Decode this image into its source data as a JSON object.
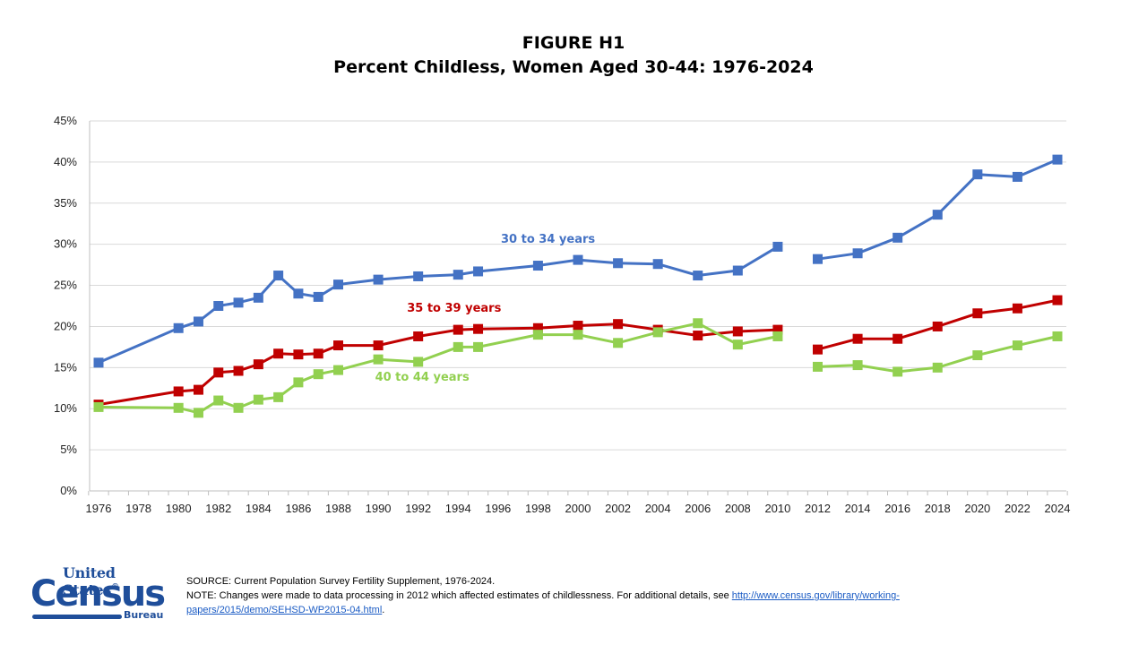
{
  "header": {
    "figure_label": "FIGURE H1",
    "title": "Percent Childless, Women Aged 30-44: 1976-2024"
  },
  "chart_data": {
    "type": "line",
    "title": "Percent Childless, Women Aged 30-44: 1976-2024",
    "xlabel": "",
    "ylabel": "",
    "ylim": [
      0,
      45
    ],
    "xlim": [
      1976,
      2024
    ],
    "y_ticks": [
      "0%",
      "5%",
      "10%",
      "15%",
      "20%",
      "25%",
      "30%",
      "35%",
      "40%",
      "45%"
    ],
    "y_tick_values": [
      0,
      5,
      10,
      15,
      20,
      25,
      30,
      35,
      40,
      45
    ],
    "x_ticks": [
      "1976",
      "1978",
      "1980",
      "1982",
      "1984",
      "1986",
      "1988",
      "1990",
      "1992",
      "1994",
      "1996",
      "1998",
      "2000",
      "2002",
      "2004",
      "2006",
      "2008",
      "2010",
      "2012",
      "2014",
      "2016",
      "2018",
      "2020",
      "2022",
      "2024"
    ],
    "grid": "horizontal",
    "legend": "inline labels",
    "break_after": 2010,
    "series": [
      {
        "name": "30 to 34 years",
        "color": "#4472c4",
        "label_pos": [
          1998.5,
          30.2
        ],
        "points": [
          [
            1976,
            15.6
          ],
          [
            1980,
            19.8
          ],
          [
            1981,
            20.6
          ],
          [
            1982,
            22.5
          ],
          [
            1983,
            22.9
          ],
          [
            1984,
            23.5
          ],
          [
            1985,
            26.2
          ],
          [
            1986,
            24.0
          ],
          [
            1987,
            23.6
          ],
          [
            1988,
            25.1
          ],
          [
            1990,
            25.7
          ],
          [
            1992,
            26.1
          ],
          [
            1994,
            26.3
          ],
          [
            1995,
            26.7
          ],
          [
            1998,
            27.4
          ],
          [
            2000,
            28.1
          ],
          [
            2002,
            27.7
          ],
          [
            2004,
            27.6
          ],
          [
            2006,
            26.2
          ],
          [
            2008,
            26.8
          ],
          [
            2010,
            29.7
          ],
          [
            2012,
            28.2
          ],
          [
            2014,
            28.9
          ],
          [
            2016,
            30.8
          ],
          [
            2018,
            33.6
          ],
          [
            2020,
            38.5
          ],
          [
            2022,
            38.2
          ],
          [
            2024,
            40.3
          ]
        ]
      },
      {
        "name": "35 to 39 years",
        "color": "#c00000",
        "label_pos": [
          1993.8,
          21.8
        ],
        "points": [
          [
            1976,
            10.5
          ],
          [
            1980,
            12.1
          ],
          [
            1981,
            12.3
          ],
          [
            1982,
            14.4
          ],
          [
            1983,
            14.6
          ],
          [
            1984,
            15.4
          ],
          [
            1985,
            16.7
          ],
          [
            1986,
            16.6
          ],
          [
            1987,
            16.7
          ],
          [
            1988,
            17.7
          ],
          [
            1990,
            17.7
          ],
          [
            1992,
            18.8
          ],
          [
            1994,
            19.6
          ],
          [
            1995,
            19.7
          ],
          [
            1998,
            19.8
          ],
          [
            2000,
            20.1
          ],
          [
            2002,
            20.3
          ],
          [
            2004,
            19.6
          ],
          [
            2006,
            18.9
          ],
          [
            2008,
            19.4
          ],
          [
            2010,
            19.6
          ],
          [
            2012,
            17.2
          ],
          [
            2014,
            18.5
          ],
          [
            2016,
            18.5
          ],
          [
            2018,
            20.0
          ],
          [
            2020,
            21.6
          ],
          [
            2022,
            22.2
          ],
          [
            2024,
            23.2
          ]
        ]
      },
      {
        "name": "40 to 44 years",
        "color": "#92d050",
        "label_pos": [
          1992.2,
          13.4
        ],
        "points": [
          [
            1976,
            10.2
          ],
          [
            1980,
            10.1
          ],
          [
            1981,
            9.5
          ],
          [
            1982,
            11.0
          ],
          [
            1983,
            10.1
          ],
          [
            1984,
            11.1
          ],
          [
            1985,
            11.4
          ],
          [
            1986,
            13.2
          ],
          [
            1987,
            14.2
          ],
          [
            1988,
            14.7
          ],
          [
            1990,
            16.0
          ],
          [
            1992,
            15.7
          ],
          [
            1994,
            17.5
          ],
          [
            1995,
            17.5
          ],
          [
            1998,
            19.0
          ],
          [
            2000,
            19.0
          ],
          [
            2002,
            18.0
          ],
          [
            2004,
            19.3
          ],
          [
            2006,
            20.4
          ],
          [
            2008,
            17.8
          ],
          [
            2010,
            18.8
          ],
          [
            2012,
            15.1
          ],
          [
            2014,
            15.3
          ],
          [
            2016,
            14.5
          ],
          [
            2018,
            15.0
          ],
          [
            2020,
            16.5
          ],
          [
            2022,
            17.7
          ],
          [
            2024,
            18.8
          ]
        ]
      }
    ]
  },
  "footer": {
    "logo": {
      "line1": "United States",
      "registered": "®",
      "line2": "Census",
      "line3": "Bureau"
    },
    "source": "SOURCE: Current Population Survey Fertility Supplement, 1976-2024.",
    "note_prefix": "NOTE: Changes were made to data processing in 2012 which affected estimates of childlessness.  For additional details, see ",
    "note_link": "http://www.census.gov/library/working-papers/2015/demo/SEHSD-WP2015-04.html",
    "note_suffix": "."
  }
}
